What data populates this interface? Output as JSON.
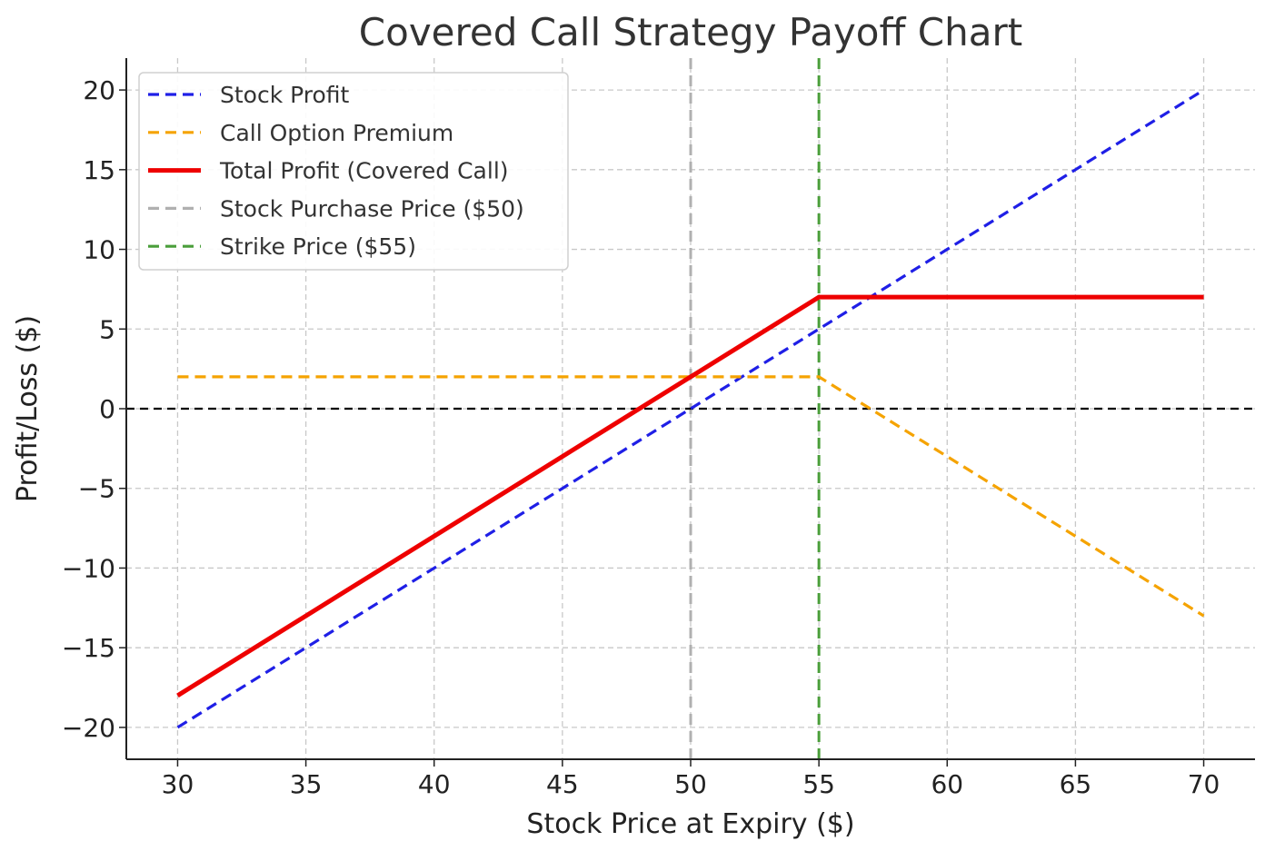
{
  "chart_data": {
    "type": "line",
    "title": "Covered Call Strategy Payoff Chart",
    "xlabel": "Stock Price at Expiry ($)",
    "ylabel": "Profit/Loss ($)",
    "xlim": [
      28,
      72
    ],
    "ylim": [
      -22,
      22
    ],
    "x_ticks": [
      30,
      35,
      40,
      45,
      50,
      55,
      60,
      65,
      70
    ],
    "y_ticks": [
      -20,
      -15,
      -10,
      -5,
      0,
      5,
      10,
      15,
      20
    ],
    "y_tick_labels": [
      "−20",
      "−15",
      "−10",
      "−5",
      "0",
      "5",
      "10",
      "15",
      "20"
    ],
    "grid": true,
    "legend_position": "top-left",
    "x": [
      30,
      35,
      40,
      45,
      50,
      55,
      60,
      65,
      70
    ],
    "series": [
      {
        "name": "Stock Profit",
        "color": "#1f1fe6",
        "style": "dashed",
        "values": [
          -20,
          -15,
          -10,
          -5,
          0,
          5,
          10,
          15,
          20
        ]
      },
      {
        "name": "Call Option Premium",
        "color": "#f5a300",
        "style": "dashed",
        "values": [
          2,
          2,
          2,
          2,
          2,
          2,
          -3,
          -8,
          -13
        ]
      },
      {
        "name": "Total Profit (Covered Call)",
        "color": "#ee0000",
        "style": "solid",
        "values": [
          -18,
          -13,
          -8,
          -3,
          2,
          7,
          7,
          7,
          7
        ]
      }
    ],
    "reference_lines": [
      {
        "name": "Stock Purchase Price ($50)",
        "orientation": "vertical",
        "value": 50,
        "color": "#b0b0b0",
        "style": "dashed"
      },
      {
        "name": "Strike Price ($55)",
        "orientation": "vertical",
        "value": 55,
        "color": "#4a9e3a",
        "style": "dashed"
      },
      {
        "orientation": "horizontal",
        "value": 0,
        "color": "#000000",
        "style": "dashed"
      }
    ]
  }
}
